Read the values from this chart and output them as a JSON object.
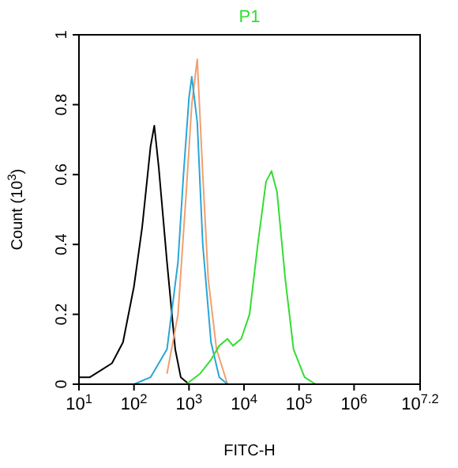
{
  "chart_data": {
    "type": "line",
    "title": "P1",
    "xlabel": "FITC-H",
    "ylabel": "Count (10$^{3}$)",
    "log": "x",
    "grid": false,
    "line_style": "solid",
    "xlim": [
      10,
      15848932
    ],
    "xticks": [
      {
        "value": 10,
        "label": "10$^{1}$"
      },
      {
        "value": 100,
        "label": "10$^{2}$"
      },
      {
        "value": 1000,
        "label": "10$^{3}$"
      },
      {
        "value": 10000,
        "label": "10$^{4}$"
      },
      {
        "value": 100000,
        "label": "10$^{5}$"
      },
      {
        "value": 1000000,
        "label": "10$^{6}$"
      },
      {
        "value": 15848932,
        "label": "10$^{7.2}$"
      }
    ],
    "ylim": [
      0,
      1
    ],
    "yticks": [
      0,
      0.2,
      0.4,
      0.6,
      0.8,
      1
    ],
    "series": [
      {
        "color": "#000000",
        "x": [
          10,
          15.8,
          25.1,
          39.8,
          63.1,
          100,
          141,
          200,
          234,
          282,
          398,
          562,
          708,
          1000
        ],
        "values": [
          0.02,
          0.02,
          0.04,
          0.06,
          0.12,
          0.28,
          0.45,
          0.68,
          0.74,
          0.62,
          0.35,
          0.1,
          0.02,
          0
        ]
      },
      {
        "color": "#f0a070",
        "x": [
          398,
          631,
          891,
          1122,
          1413,
          1778,
          2239,
          3162,
          5012
        ],
        "values": [
          0.03,
          0.2,
          0.55,
          0.8,
          0.93,
          0.6,
          0.3,
          0.1,
          0
        ]
      },
      {
        "color": "#29a6d6",
        "x": [
          100,
          200,
          398,
          631,
          794,
          1000,
          1122,
          1413,
          1778,
          2512,
          3548,
          5012
        ],
        "values": [
          0,
          0.02,
          0.1,
          0.35,
          0.6,
          0.82,
          0.88,
          0.75,
          0.4,
          0.12,
          0.02,
          0
        ]
      },
      {
        "color": "#33dd33",
        "x": [
          891,
          1585,
          2512,
          3548,
          5012,
          6310,
          8913,
          12589,
          17783,
          25119,
          31623,
          39811,
          56234,
          79433,
          125893,
          199526
        ],
        "values": [
          0,
          0.03,
          0.07,
          0.11,
          0.13,
          0.11,
          0.13,
          0.2,
          0.4,
          0.58,
          0.61,
          0.55,
          0.3,
          0.1,
          0.02,
          0
        ]
      }
    ]
  }
}
